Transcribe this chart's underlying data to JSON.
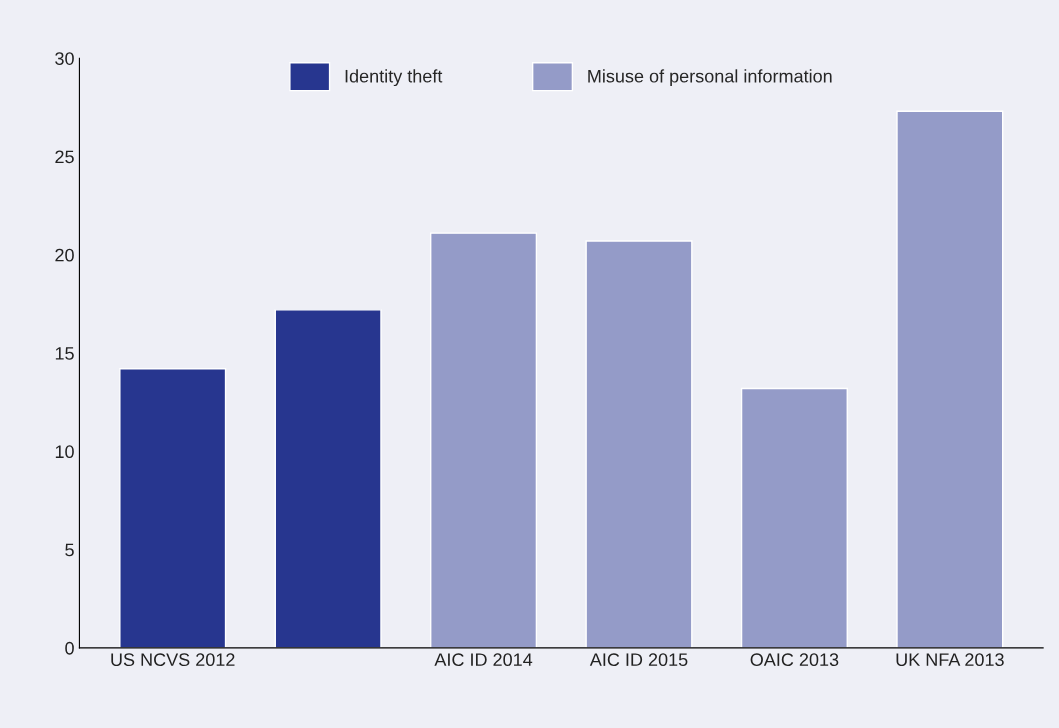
{
  "chart_data": {
    "type": "bar",
    "categories": [
      "US NCVS 2012",
      null,
      "AIC ID 2014",
      "AIC ID 2015",
      "OAIC 2013",
      "UK NFA 2013"
    ],
    "series": [
      {
        "name": "Identity theft",
        "color": "#27368f",
        "values": [
          14.2,
          17.2,
          null,
          null,
          null,
          null
        ]
      },
      {
        "name": "Misuse of personal information",
        "color": "#949bc8",
        "values": [
          null,
          null,
          21.1,
          20.7,
          13.2,
          27.3
        ]
      }
    ],
    "ylim": [
      0,
      30
    ],
    "yticks": [
      0,
      5,
      10,
      15,
      20,
      25,
      30
    ],
    "grid": false,
    "legend": "top"
  }
}
